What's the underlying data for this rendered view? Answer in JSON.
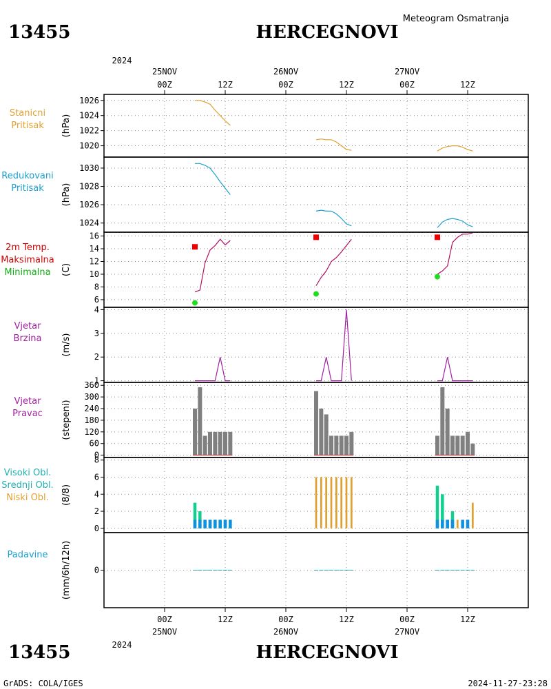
{
  "header": {
    "station_id": "13455",
    "station_name": "HERCEGNOVI",
    "subtitle": "Meteogram Osmatranja"
  },
  "footer": {
    "left": "GrADS: COLA/IGES",
    "right": "2024-11-27-23:28"
  },
  "time_axis": {
    "top_year": "2024",
    "bottom_year": "2024",
    "ticks": [
      {
        "hour": 0,
        "time": "00Z",
        "date": "25NOV"
      },
      {
        "hour": 12,
        "time": "12Z",
        "date": ""
      },
      {
        "hour": 24,
        "time": "00Z",
        "date": "26NOV"
      },
      {
        "hour": 36,
        "time": "12Z",
        "date": ""
      },
      {
        "hour": 48,
        "time": "00Z",
        "date": "27NOV"
      },
      {
        "hour": 60,
        "time": "12Z",
        "date": ""
      }
    ]
  },
  "chart_data": [
    {
      "type": "line",
      "label_lines": [
        "Stanicni",
        "Pritisak"
      ],
      "label_colors": [
        "#e0a030",
        "#e0a030"
      ],
      "unit": "(hPa)",
      "ylim": [
        1018.5,
        1026.8
      ],
      "yticks": [
        1020,
        1022,
        1024,
        1026
      ],
      "series": [
        {
          "color": "#e0a030",
          "x": [
            6,
            7,
            8,
            9,
            10,
            11,
            12,
            13
          ],
          "y": [
            1026.0,
            1026.0,
            1025.8,
            1025.5,
            1024.7,
            1024.0,
            1023.3,
            1022.7
          ]
        },
        {
          "color": "#e0a030",
          "x": [
            30,
            31,
            32,
            33,
            34,
            35,
            36,
            37
          ],
          "y": [
            1020.8,
            1020.9,
            1020.8,
            1020.8,
            1020.5,
            1020.0,
            1019.5,
            1019.4
          ]
        },
        {
          "color": "#e0a030",
          "x": [
            54,
            55,
            56,
            57,
            58,
            59,
            60,
            61
          ],
          "y": [
            1019.3,
            1019.7,
            1019.9,
            1020.0,
            1020.0,
            1019.8,
            1019.5,
            1019.3
          ]
        }
      ]
    },
    {
      "type": "line",
      "label_lines": [
        "Redukovani",
        "Pritisak"
      ],
      "label_colors": [
        "#1aa0d0",
        "#1aa0d0"
      ],
      "unit": "(hPa)",
      "ylim": [
        1023.0,
        1031.2
      ],
      "yticks": [
        1024,
        1026,
        1028,
        1030
      ],
      "series": [
        {
          "color": "#1aa0d0",
          "x": [
            6,
            7,
            8,
            9,
            10,
            11,
            12,
            13
          ],
          "y": [
            1030.5,
            1030.5,
            1030.3,
            1030.0,
            1029.3,
            1028.5,
            1027.8,
            1027.1
          ]
        },
        {
          "color": "#1aa0d0",
          "x": [
            30,
            31,
            32,
            33,
            34,
            35,
            36,
            37
          ],
          "y": [
            1025.3,
            1025.4,
            1025.3,
            1025.3,
            1025.0,
            1024.5,
            1023.9,
            1023.7
          ]
        },
        {
          "color": "#1aa0d0",
          "x": [
            54,
            55,
            56,
            57,
            58,
            59,
            60,
            61
          ],
          "y": [
            1023.5,
            1024.1,
            1024.4,
            1024.5,
            1024.4,
            1024.2,
            1023.8,
            1023.6
          ]
        }
      ]
    },
    {
      "type": "line",
      "label_lines": [
        "2m Temp.",
        "Maksimalna",
        "Minimalna"
      ],
      "label_colors": [
        "#cc0000",
        "#cc0000",
        "#10b010"
      ],
      "unit": "(C)",
      "ylim": [
        4.8,
        16.6
      ],
      "yticks": [
        6,
        8,
        10,
        12,
        14,
        16
      ],
      "series": [
        {
          "color": "#b01060",
          "x": [
            6,
            7,
            8,
            9,
            10,
            11,
            12,
            13
          ],
          "y": [
            7.2,
            7.5,
            11.8,
            13.8,
            14.5,
            15.5,
            14.6,
            15.3
          ]
        },
        {
          "color": "#b01060",
          "x": [
            30,
            31,
            32,
            33,
            34,
            35,
            36,
            37
          ],
          "y": [
            8.2,
            9.5,
            10.5,
            12.0,
            12.6,
            13.5,
            14.5,
            15.5
          ]
        },
        {
          "color": "#b01060",
          "x": [
            54,
            55,
            56,
            57,
            58,
            59,
            60,
            61
          ],
          "y": [
            10.0,
            10.5,
            11.3,
            15.0,
            15.8,
            16.3,
            16.3,
            16.5
          ]
        }
      ],
      "max_points": {
        "color": "#ee0000",
        "x": [
          6,
          30,
          54
        ],
        "y": [
          14.3,
          15.8,
          15.8
        ]
      },
      "min_points": {
        "color": "#20dd20",
        "x": [
          6,
          30,
          54
        ],
        "y": [
          5.5,
          6.9,
          9.6
        ]
      }
    },
    {
      "type": "line",
      "label_lines": [
        "Vjetar",
        "Brzina"
      ],
      "label_colors": [
        "#a020a0",
        "#a020a0"
      ],
      "unit": "(m/s)",
      "ylim": [
        0.93,
        4.1
      ],
      "yticks": [
        1,
        2,
        3,
        4
      ],
      "series": [
        {
          "color": "#a020a0",
          "x": [
            6,
            7,
            8,
            9,
            10,
            11,
            12,
            13
          ],
          "y": [
            1,
            1,
            1,
            1,
            1,
            2,
            1,
            1
          ]
        },
        {
          "color": "#a020a0",
          "x": [
            30,
            31,
            32,
            33,
            34,
            35,
            36,
            37
          ],
          "y": [
            1,
            1,
            2,
            1,
            1,
            1,
            4,
            1
          ]
        },
        {
          "color": "#a020a0",
          "x": [
            54,
            55,
            56,
            57,
            58,
            59,
            60,
            61
          ],
          "y": [
            1,
            1,
            2,
            1,
            1,
            1,
            1,
            1
          ]
        }
      ]
    },
    {
      "type": "bar",
      "label_lines": [
        "Vjetar",
        "Pravac"
      ],
      "label_colors": [
        "#a020a0",
        "#a020a0"
      ],
      "unit": "(stepeni)",
      "ylim": [
        -12,
        375
      ],
      "yticks": [
        0,
        60,
        120,
        180,
        240,
        300,
        360
      ],
      "bar_color": "#808080",
      "base_line_color": "#cc2020",
      "x": [
        6,
        7,
        8,
        9,
        10,
        11,
        12,
        13,
        30,
        31,
        32,
        33,
        34,
        35,
        36,
        37,
        54,
        55,
        56,
        57,
        58,
        59,
        60,
        61
      ],
      "values": [
        240,
        350,
        100,
        120,
        120,
        120,
        120,
        120,
        330,
        240,
        210,
        100,
        100,
        100,
        100,
        120,
        100,
        350,
        240,
        100,
        100,
        100,
        120,
        60
      ]
    },
    {
      "type": "bar",
      "label_lines": [
        "Visoki Obl.",
        "Srednji Obl.",
        "Niski Obl."
      ],
      "label_colors": [
        "#20b0b0",
        "#20b0b0",
        "#e0a030"
      ],
      "unit": "(8/8)",
      "ylim": [
        -0.5,
        8.3
      ],
      "yticks": [
        0,
        2,
        4,
        6,
        8
      ],
      "series": [
        {
          "name": "Visoki Obl.",
          "color": "#10d090",
          "x": [
            6,
            7,
            8,
            9,
            10,
            11,
            12,
            13,
            30,
            31,
            32,
            33,
            34,
            35,
            36,
            37,
            54,
            55,
            56,
            57,
            58,
            59,
            60,
            61
          ],
          "values": [
            3,
            2,
            1,
            1,
            1,
            1,
            1,
            1,
            0,
            0,
            0,
            0,
            0,
            0,
            0,
            0,
            5,
            4,
            1,
            2,
            0,
            0,
            0,
            0
          ]
        },
        {
          "name": "Srednji Obl.",
          "color": "#1090e0",
          "x": [
            6,
            7,
            8,
            9,
            10,
            11,
            12,
            13,
            30,
            31,
            32,
            33,
            34,
            35,
            36,
            37,
            54,
            55,
            56,
            57,
            58,
            59,
            60,
            61
          ],
          "values": [
            1,
            1,
            1,
            1,
            1,
            1,
            1,
            1,
            0,
            0,
            0,
            0,
            0,
            0,
            0,
            0,
            1,
            1,
            1,
            1,
            0,
            1,
            1,
            0
          ]
        },
        {
          "name": "Niski Obl.",
          "color": "#e0a030",
          "x": [
            6,
            7,
            8,
            9,
            10,
            11,
            12,
            13,
            30,
            31,
            32,
            33,
            34,
            35,
            36,
            37,
            54,
            55,
            56,
            57,
            58,
            59,
            60,
            61
          ],
          "values": [
            0,
            0,
            0,
            0,
            0,
            0,
            0,
            0,
            6,
            6,
            6,
            6,
            6,
            6,
            6,
            6,
            1,
            1,
            1,
            1,
            1,
            1,
            1,
            3
          ]
        }
      ]
    },
    {
      "type": "bar",
      "label_lines": [
        "Padavine"
      ],
      "label_colors": [
        "#1aa0d0"
      ],
      "unit": "(mm/6h/12h)",
      "ylim": [
        -0.5,
        0.5
      ],
      "yticks": [
        0
      ],
      "bar_color": "#20a0b0",
      "x": [
        6,
        7,
        8,
        9,
        10,
        11,
        12,
        13,
        30,
        31,
        32,
        33,
        34,
        35,
        36,
        37,
        54,
        55,
        56,
        57,
        58,
        59,
        60,
        61
      ],
      "values": [
        0,
        0,
        0,
        0,
        0,
        0,
        0,
        0,
        0,
        0,
        0,
        0,
        0,
        0,
        0,
        0,
        0,
        0,
        0,
        0,
        0,
        0,
        0,
        0
      ]
    }
  ]
}
